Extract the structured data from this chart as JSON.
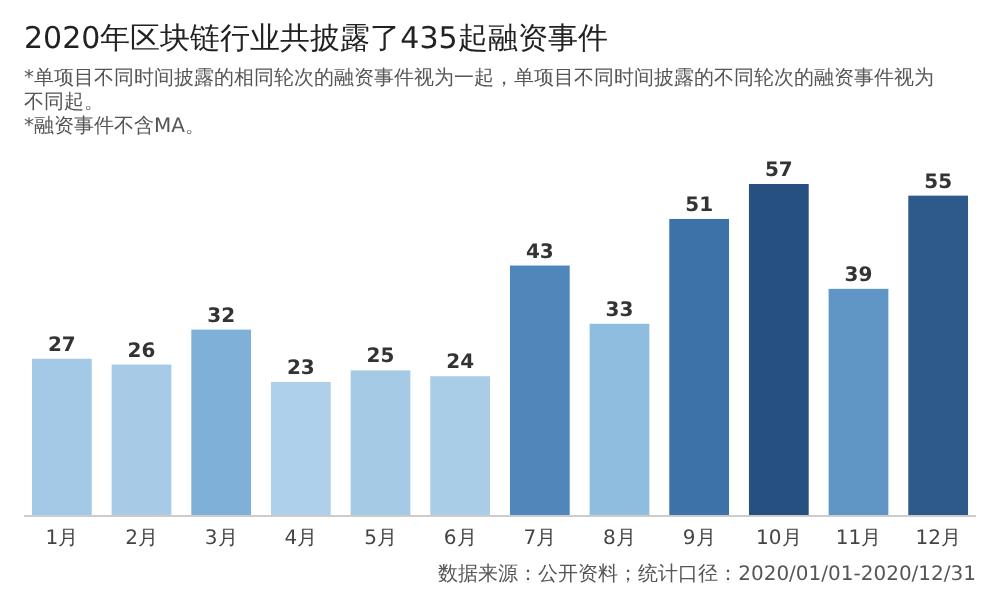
{
  "chart_data": {
    "type": "bar",
    "title": "2020年区块链行业共披露了435起融资事件",
    "annotations": [
      "*单项目不同时间披露的相同轮次的融资事件视为一起，单项目不同时间披露的不同轮次的融资事件视为不同起。",
      "*融资事件不含MA。",
      "数据来源：公开资料；统计口径：2020/01/01-2020/12/31"
    ],
    "categories": [
      "1月",
      "2月",
      "3月",
      "4月",
      "5月",
      "6月",
      "7月",
      "8月",
      "9月",
      "10月",
      "11月",
      "12月"
    ],
    "values": [
      27,
      26,
      32,
      23,
      25,
      24,
      43,
      33,
      51,
      57,
      39,
      55
    ],
    "colors": [
      "#a3c9e6",
      "#a7cbe7",
      "#7fb0d8",
      "#aed0ea",
      "#a5cae6",
      "#a9cce7",
      "#4f87ba",
      "#8fbde0",
      "#3c72a8",
      "#25507f",
      "#5f96c6",
      "#2d5a8a"
    ],
    "data_labels": true
  }
}
